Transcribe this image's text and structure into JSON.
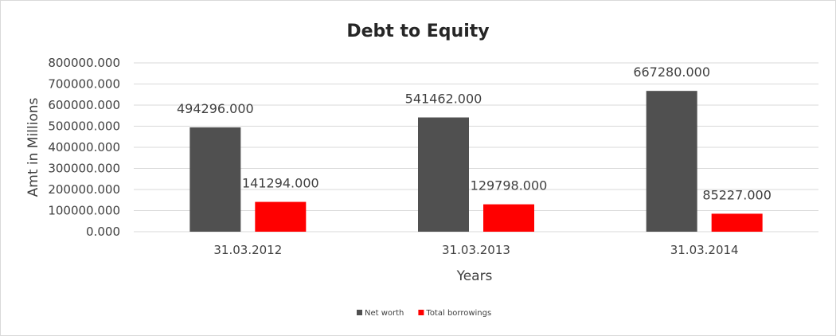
{
  "chart_data": {
    "type": "bar",
    "title": "Debt to Equity",
    "xlabel": "Years",
    "ylabel": "Amt in Millions",
    "categories": [
      "31.03.2012",
      "31.03.2013",
      "31.03.2014"
    ],
    "series": [
      {
        "name": "Net worth",
        "values": [
          494296.0,
          541462.0,
          667280.0
        ],
        "color": "#505050",
        "labels": [
          "494296.000",
          "541462.000",
          "667280.000"
        ]
      },
      {
        "name": "Total borrowings",
        "values": [
          141294.0,
          129798.0,
          85227.0
        ],
        "color": "#ff0000",
        "labels": [
          "141294.000",
          "129798.000",
          "85227.000"
        ]
      }
    ],
    "ylim": [
      0,
      800000
    ],
    "yticks": [
      0,
      100000,
      200000,
      300000,
      400000,
      500000,
      600000,
      700000,
      800000
    ],
    "ytick_labels": [
      "0.000",
      "100000.000",
      "200000.000",
      "300000.000",
      "400000.000",
      "500000.000",
      "600000.000",
      "700000.000",
      "800000.000"
    ],
    "grid": true,
    "legend_position": "bottom"
  }
}
